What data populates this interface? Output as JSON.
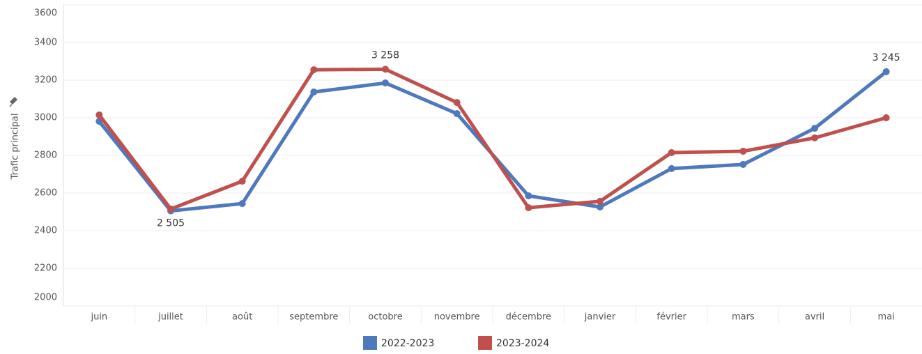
{
  "chart_data": {
    "type": "line",
    "y_label": "Trafic principal",
    "categories": [
      "juin",
      "juillet",
      "août",
      "septembre",
      "octobre",
      "novembre",
      "décembre",
      "janvier",
      "février",
      "mars",
      "avril",
      "mai"
    ],
    "series": [
      {
        "name": "2022-2023",
        "color": "#4e79bd",
        "values": [
          2981,
          2505,
          2544,
          3137,
          3185,
          3022,
          2585,
          2526,
          2730,
          2752,
          2944,
          3245
        ],
        "value_labels": [
          null,
          "2 505",
          null,
          null,
          null,
          null,
          null,
          null,
          null,
          null,
          null,
          "3 245"
        ]
      },
      {
        "name": "2023-2024",
        "color": "#c0504d",
        "values": [
          3015,
          2515,
          2663,
          3255,
          3258,
          3081,
          2522,
          2556,
          2815,
          2822,
          2893,
          3000
        ],
        "value_labels": [
          null,
          null,
          null,
          null,
          "3 258",
          null,
          null,
          null,
          null,
          null,
          null,
          null
        ]
      }
    ],
    "ylim": [
      2000,
      3600
    ],
    "yticks": [
      2000,
      2200,
      2400,
      2600,
      2800,
      3000,
      3200,
      3400,
      3600
    ],
    "grid": true
  }
}
